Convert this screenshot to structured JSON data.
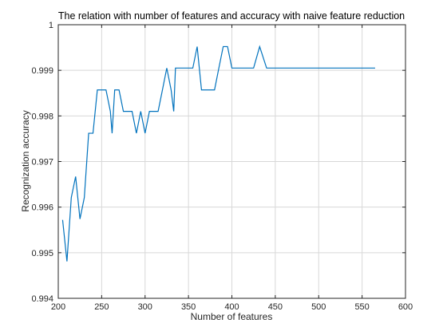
{
  "chart_data": {
    "type": "line",
    "title": "The relation with number of features and accuracy with naive feature reduction",
    "xlabel": "Number of features",
    "ylabel": "Recognization accuracy",
    "xlim": [
      200,
      600
    ],
    "ylim": [
      0.994,
      1.0
    ],
    "xticks": [
      "200",
      "250",
      "300",
      "350",
      "400",
      "450",
      "500",
      "550",
      "600"
    ],
    "yticks": [
      "0.994",
      "0.995",
      "0.996",
      "0.997",
      "0.998",
      "0.999",
      "1"
    ],
    "grid": true,
    "colors": {
      "series": "#0072bd",
      "axes": "#262626",
      "grid": "#d8d8d8"
    },
    "series": [
      {
        "x": [
          205,
          210,
          215,
          220,
          225,
          230,
          235,
          240,
          245,
          250,
          255,
          260,
          262,
          265,
          270,
          275,
          280,
          285,
          290,
          295,
          300,
          305,
          310,
          315,
          320,
          325,
          330,
          333,
          335,
          340,
          350,
          355,
          360,
          365,
          370,
          375,
          380,
          385,
          390,
          395,
          400,
          405,
          410,
          415,
          420,
          425,
          432,
          440,
          445,
          452,
          460,
          470,
          480,
          490,
          500,
          510,
          520,
          530,
          540,
          550,
          565
        ],
        "y": [
          0.99572,
          0.99481,
          0.99621,
          0.99667,
          0.99574,
          0.99621,
          0.99762,
          0.99762,
          0.99857,
          0.99857,
          0.99857,
          0.9981,
          0.99762,
          0.99857,
          0.99857,
          0.9981,
          0.9981,
          0.9981,
          0.99762,
          0.9981,
          0.99762,
          0.9981,
          0.9981,
          0.9981,
          0.99857,
          0.99905,
          0.99857,
          0.9981,
          0.99905,
          0.99905,
          0.99905,
          0.99905,
          0.99952,
          0.99857,
          0.99857,
          0.99857,
          0.99857,
          0.99905,
          0.99952,
          0.99952,
          0.99905,
          0.99905,
          0.99905,
          0.99905,
          0.99905,
          0.99905,
          0.99952,
          0.99905,
          0.99905,
          0.99905,
          0.99905,
          0.99905,
          0.99905,
          0.99905,
          0.99905,
          0.99905,
          0.99905,
          0.99905,
          0.99905,
          0.99905,
          0.99905
        ]
      }
    ]
  }
}
